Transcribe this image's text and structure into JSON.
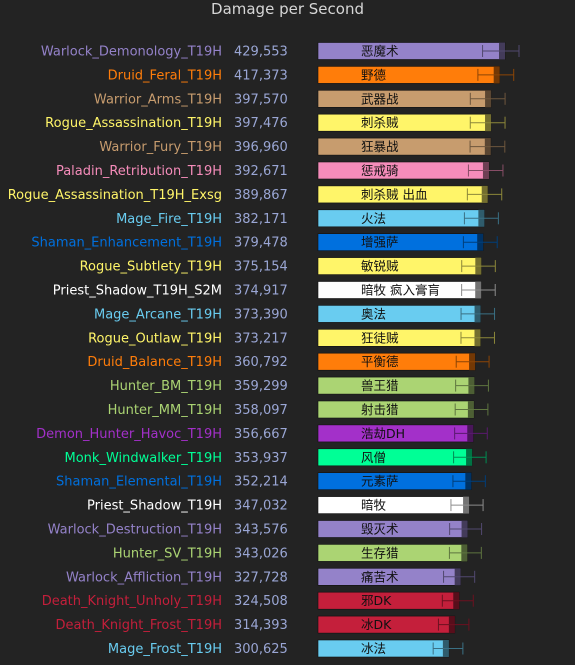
{
  "chart_data": {
    "type": "bar",
    "title": "Damage per Second",
    "orientation": "horizontal",
    "xlabel": "",
    "ylabel": "",
    "rows": [
      {
        "label": "Warlock_Demonology_T19H",
        "value": 429553,
        "value_text": "429,553",
        "cn": "恶魔术",
        "color": "#9482c9",
        "label_color": "#9482c9"
      },
      {
        "label": "Druid_Feral_T19H",
        "value": 417373,
        "value_text": "417,373",
        "cn": "野德",
        "color": "#ff7d0a",
        "label_color": "#ff7d0a"
      },
      {
        "label": "Warrior_Arms_T19H",
        "value": 397570,
        "value_text": "397,570",
        "cn": "武器战",
        "color": "#c79c6e",
        "label_color": "#c79c6e"
      },
      {
        "label": "Rogue_Assassination_T19H",
        "value": 397476,
        "value_text": "397,476",
        "cn": "刺杀贼",
        "color": "#fff569",
        "label_color": "#fff569"
      },
      {
        "label": "Warrior_Fury_T19H",
        "value": 396960,
        "value_text": "396,960",
        "cn": "狂暴战",
        "color": "#c79c6e",
        "label_color": "#c79c6e"
      },
      {
        "label": "Paladin_Retribution_T19H",
        "value": 392671,
        "value_text": "392,671",
        "cn": "惩戒骑",
        "color": "#f58cba",
        "label_color": "#f58cba"
      },
      {
        "label": "Rogue_Assassination_T19H_Exsg",
        "value": 389867,
        "value_text": "389,867",
        "cn": "刺杀贼 出血",
        "color": "#fff569",
        "label_color": "#fff569"
      },
      {
        "label": "Mage_Fire_T19H",
        "value": 382171,
        "value_text": "382,171",
        "cn": "火法",
        "color": "#69ccf0",
        "label_color": "#69ccf0"
      },
      {
        "label": "Shaman_Enhancement_T19H",
        "value": 379478,
        "value_text": "379,478",
        "cn": "增强萨",
        "color": "#0070de",
        "label_color": "#0070de"
      },
      {
        "label": "Rogue_Subtlety_T19H",
        "value": 375154,
        "value_text": "375,154",
        "cn": "敏锐贼",
        "color": "#fff569",
        "label_color": "#fff569"
      },
      {
        "label": "Priest_Shadow_T19H_S2M",
        "value": 374917,
        "value_text": "374,917",
        "cn": "暗牧 疯入膏肓",
        "color": "#ffffff",
        "label_color": "#ffffff"
      },
      {
        "label": "Mage_Arcane_T19H",
        "value": 373390,
        "value_text": "373,390",
        "cn": "奥法",
        "color": "#69ccf0",
        "label_color": "#69ccf0"
      },
      {
        "label": "Rogue_Outlaw_T19H",
        "value": 373217,
        "value_text": "373,217",
        "cn": "狂徒贼",
        "color": "#fff569",
        "label_color": "#fff569"
      },
      {
        "label": "Druid_Balance_T19H",
        "value": 360792,
        "value_text": "360,792",
        "cn": "平衡德",
        "color": "#ff7d0a",
        "label_color": "#ff7d0a"
      },
      {
        "label": "Hunter_BM_T19H",
        "value": 359299,
        "value_text": "359,299",
        "cn": "兽王猎",
        "color": "#abd473",
        "label_color": "#abd473"
      },
      {
        "label": "Hunter_MM_T19H",
        "value": 358097,
        "value_text": "358,097",
        "cn": "射击猎",
        "color": "#abd473",
        "label_color": "#abd473"
      },
      {
        "label": "Demon_Hunter_Havoc_T19H",
        "value": 356667,
        "value_text": "356,667",
        "cn": "浩劫DH",
        "color": "#a330c9",
        "label_color": "#a330c9"
      },
      {
        "label": "Monk_Windwalker_T19H",
        "value": 353937,
        "value_text": "353,937",
        "cn": "风僧",
        "color": "#00ff96",
        "label_color": "#00ff96"
      },
      {
        "label": "Shaman_Elemental_T19H",
        "value": 352214,
        "value_text": "352,214",
        "cn": "元素萨",
        "color": "#0070de",
        "label_color": "#0070de"
      },
      {
        "label": "Priest_Shadow_T19H",
        "value": 347032,
        "value_text": "347,032",
        "cn": "暗牧",
        "color": "#ffffff",
        "label_color": "#ffffff"
      },
      {
        "label": "Warlock_Destruction_T19H",
        "value": 343576,
        "value_text": "343,576",
        "cn": "毁灭术",
        "color": "#9482c9",
        "label_color": "#9482c9"
      },
      {
        "label": "Hunter_SV_T19H",
        "value": 343026,
        "value_text": "343,026",
        "cn": "生存猎",
        "color": "#abd473",
        "label_color": "#abd473"
      },
      {
        "label": "Warlock_Affliction_T19H",
        "value": 327728,
        "value_text": "327,728",
        "cn": "痛苦术",
        "color": "#9482c9",
        "label_color": "#9482c9"
      },
      {
        "label": "Death_Knight_Unholy_T19H",
        "value": 324508,
        "value_text": "324,508",
        "cn": "邪DK",
        "color": "#c41f3b",
        "label_color": "#c41f3b"
      },
      {
        "label": "Death_Knight_Frost_T19H",
        "value": 314393,
        "value_text": "314,393",
        "cn": "冰DK",
        "color": "#c41f3b",
        "label_color": "#c41f3b"
      },
      {
        "label": "Mage_Frost_T19H",
        "value": 300625,
        "value_text": "300,625",
        "cn": "冰法",
        "color": "#69ccf0",
        "label_color": "#69ccf0"
      }
    ]
  }
}
